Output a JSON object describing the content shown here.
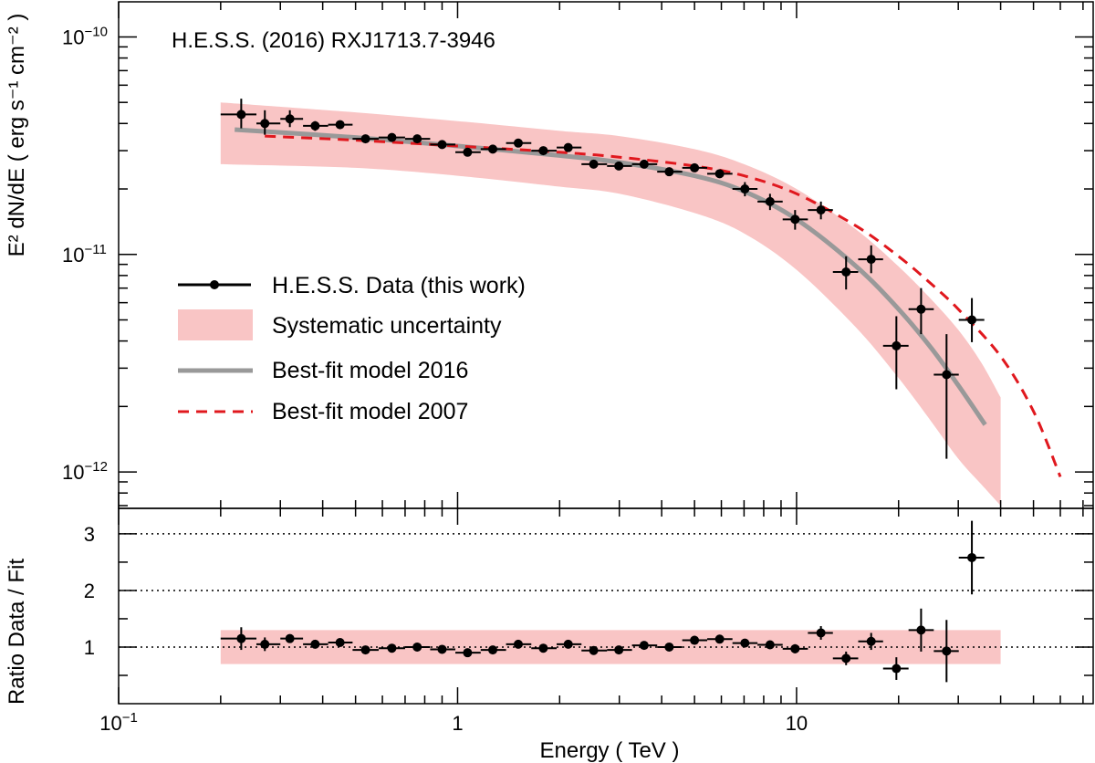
{
  "chart_data": {
    "type": "scatter",
    "title": "H.E.S.S. (2016) RXJ1713.7-3946",
    "xlabel": "Energy ( TeV )",
    "ylabel_upper": "E² dN/dE ( erg s⁻¹ cm⁻² )",
    "ylabel_lower": "Ratio Data / Fit",
    "x_scale": "log",
    "xlim": [
      0.1,
      75
    ],
    "x_tick_labels": [
      {
        "value": 0.1,
        "base": "10",
        "exp": "−1"
      },
      {
        "value": 1,
        "text": "1"
      },
      {
        "value": 10,
        "text": "10"
      }
    ],
    "upper_panel": {
      "y_scale": "log",
      "ylim": [
        6.8e-13,
        1.45e-10
      ],
      "y_tick_labels": [
        {
          "value": 1e-10,
          "base": "10",
          "exp": "−10"
        },
        {
          "value": 1e-11,
          "base": "10",
          "exp": "−11"
        },
        {
          "value": 1e-12,
          "base": "10",
          "exp": "−12"
        }
      ],
      "series": [
        {
          "name": "H.E.S.S. Data (this work)",
          "color": "#000000",
          "points": [
            {
              "x": 0.23,
              "y": 4.4e-11,
              "xlo": 0.2,
              "xhi": 0.255,
              "ylo": 3.8e-11,
              "yhi": 5.2e-11
            },
            {
              "x": 0.27,
              "y": 4e-11,
              "xlo": 0.255,
              "xhi": 0.3,
              "ylo": 3.55e-11,
              "yhi": 4.6e-11
            },
            {
              "x": 0.32,
              "y": 4.2e-11,
              "xlo": 0.3,
              "xhi": 0.35,
              "ylo": 3.85e-11,
              "yhi": 4.6e-11
            },
            {
              "x": 0.38,
              "y": 3.9e-11,
              "xlo": 0.35,
              "xhi": 0.415,
              "ylo": 3.7e-11,
              "yhi": 4.1e-11
            },
            {
              "x": 0.45,
              "y": 3.95e-11,
              "xlo": 0.415,
              "xhi": 0.49,
              "ylo": 3.8e-11,
              "yhi": 4.1e-11
            },
            {
              "x": 0.535,
              "y": 3.4e-11,
              "xlo": 0.49,
              "xhi": 0.585,
              "ylo": 3.3e-11,
              "yhi": 3.5e-11
            },
            {
              "x": 0.64,
              "y": 3.45e-11,
              "xlo": 0.585,
              "xhi": 0.7,
              "ylo": 3.35e-11,
              "yhi": 3.55e-11
            },
            {
              "x": 0.76,
              "y": 3.4e-11,
              "xlo": 0.7,
              "xhi": 0.83,
              "ylo": 3.3e-11,
              "yhi": 3.5e-11
            },
            {
              "x": 0.9,
              "y": 3.2e-11,
              "xlo": 0.83,
              "xhi": 0.985,
              "ylo": 3.1e-11,
              "yhi": 3.3e-11
            },
            {
              "x": 1.07,
              "y": 2.95e-11,
              "xlo": 0.985,
              "xhi": 1.17,
              "ylo": 2.85e-11,
              "yhi": 3.05e-11
            },
            {
              "x": 1.27,
              "y": 3.05e-11,
              "xlo": 1.17,
              "xhi": 1.39,
              "ylo": 2.95e-11,
              "yhi": 3.15e-11
            },
            {
              "x": 1.51,
              "y": 3.25e-11,
              "xlo": 1.39,
              "xhi": 1.65,
              "ylo": 3.15e-11,
              "yhi": 3.35e-11
            },
            {
              "x": 1.79,
              "y": 3e-11,
              "xlo": 1.65,
              "xhi": 1.96,
              "ylo": 2.9e-11,
              "yhi": 3.1e-11
            },
            {
              "x": 2.12,
              "y": 3.1e-11,
              "xlo": 1.96,
              "xhi": 2.32,
              "ylo": 3e-11,
              "yhi": 3.2e-11
            },
            {
              "x": 2.52,
              "y": 2.6e-11,
              "xlo": 2.32,
              "xhi": 2.76,
              "ylo": 2.5e-11,
              "yhi": 2.7e-11
            },
            {
              "x": 2.99,
              "y": 2.55e-11,
              "xlo": 2.76,
              "xhi": 3.27,
              "ylo": 2.45e-11,
              "yhi": 2.65e-11
            },
            {
              "x": 3.55,
              "y": 2.6e-11,
              "xlo": 3.27,
              "xhi": 3.88,
              "ylo": 2.5e-11,
              "yhi": 2.7e-11
            },
            {
              "x": 4.21,
              "y": 2.4e-11,
              "xlo": 3.88,
              "xhi": 4.6,
              "ylo": 2.3e-11,
              "yhi": 2.5e-11
            },
            {
              "x": 5.0,
              "y": 2.5e-11,
              "xlo": 4.6,
              "xhi": 5.45,
              "ylo": 2.4e-11,
              "yhi": 2.6e-11
            },
            {
              "x": 5.93,
              "y": 2.35e-11,
              "xlo": 5.45,
              "xhi": 6.47,
              "ylo": 2.25e-11,
              "yhi": 2.45e-11
            },
            {
              "x": 7.04,
              "y": 2e-11,
              "xlo": 6.47,
              "xhi": 7.67,
              "ylo": 1.85e-11,
              "yhi": 2.15e-11
            },
            {
              "x": 8.35,
              "y": 1.75e-11,
              "xlo": 7.67,
              "xhi": 9.1,
              "ylo": 1.6e-11,
              "yhi": 1.9e-11
            },
            {
              "x": 9.9,
              "y": 1.45e-11,
              "xlo": 9.1,
              "xhi": 10.8,
              "ylo": 1.3e-11,
              "yhi": 1.6e-11
            },
            {
              "x": 11.8,
              "y": 1.6e-11,
              "xlo": 10.8,
              "xhi": 12.8,
              "ylo": 1.45e-11,
              "yhi": 1.75e-11
            },
            {
              "x": 14.0,
              "y": 8.3e-12,
              "xlo": 12.8,
              "xhi": 15.2,
              "ylo": 6.9e-12,
              "yhi": 9.8e-12
            },
            {
              "x": 16.6,
              "y": 9.5e-12,
              "xlo": 15.2,
              "xhi": 18.0,
              "ylo": 8.2e-12,
              "yhi": 1.1e-11
            },
            {
              "x": 19.7,
              "y": 3.8e-12,
              "xlo": 18.0,
              "xhi": 21.4,
              "ylo": 2.4e-12,
              "yhi": 5.2e-12
            },
            {
              "x": 23.3,
              "y": 5.6e-12,
              "xlo": 21.4,
              "xhi": 25.4,
              "ylo": 4.3e-12,
              "yhi": 7e-12
            },
            {
              "x": 27.7,
              "y": 2.8e-12,
              "xlo": 25.4,
              "xhi": 30.1,
              "ylo": 1.15e-12,
              "yhi": 4.3e-12
            },
            {
              "x": 32.9,
              "y": 5e-12,
              "xlo": 30.1,
              "xhi": 35.8,
              "ylo": 3.95e-12,
              "yhi": 6.3e-12
            }
          ]
        },
        {
          "name": "Systematic uncertainty",
          "color": "#f9c5c5",
          "band": [
            {
              "x": 0.2,
              "lo": 2.6e-11,
              "hi": 5e-11
            },
            {
              "x": 0.5,
              "lo": 2.5e-11,
              "hi": 4.5e-11
            },
            {
              "x": 1.0,
              "lo": 2.3e-11,
              "hi": 4.1e-11
            },
            {
              "x": 2.0,
              "lo": 2.05e-11,
              "hi": 3.7e-11
            },
            {
              "x": 3.0,
              "lo": 1.9e-11,
              "hi": 3.5e-11
            },
            {
              "x": 5.0,
              "lo": 1.55e-11,
              "hi": 3.05e-11
            },
            {
              "x": 7.0,
              "lo": 1.25e-11,
              "hi": 2.6e-11
            },
            {
              "x": 10.0,
              "lo": 8.5e-12,
              "hi": 2e-11
            },
            {
              "x": 15.0,
              "lo": 4.6e-12,
              "hi": 1.3e-11
            },
            {
              "x": 20.0,
              "lo": 2.7e-12,
              "hi": 8.8e-12
            },
            {
              "x": 25.0,
              "lo": 1.7e-12,
              "hi": 6.2e-12
            },
            {
              "x": 30.0,
              "lo": 1.15e-12,
              "hi": 4.5e-12
            },
            {
              "x": 35.0,
              "lo": 8.8e-13,
              "hi": 3.2e-12
            },
            {
              "x": 40.0,
              "lo": 7e-13,
              "hi": 2.2e-12
            }
          ]
        },
        {
          "name": "Best-fit model 2016",
          "color": "#999999",
          "style": "solid",
          "points": [
            {
              "x": 0.22,
              "y": 3.75e-11
            },
            {
              "x": 0.5,
              "y": 3.45e-11
            },
            {
              "x": 1.0,
              "y": 3.15e-11
            },
            {
              "x": 2.0,
              "y": 2.85e-11
            },
            {
              "x": 3.0,
              "y": 2.65e-11
            },
            {
              "x": 5.0,
              "y": 2.3e-11
            },
            {
              "x": 7.0,
              "y": 1.95e-11
            },
            {
              "x": 10.0,
              "y": 1.45e-11
            },
            {
              "x": 15.0,
              "y": 8.8e-12
            },
            {
              "x": 20.0,
              "y": 5.6e-12
            },
            {
              "x": 25.0,
              "y": 3.7e-12
            },
            {
              "x": 30.0,
              "y": 2.5e-12
            },
            {
              "x": 36.0,
              "y": 1.65e-12
            }
          ]
        },
        {
          "name": "Best-fit model 2007",
          "color": "#e0181e",
          "style": "dashed",
          "points": [
            {
              "x": 0.27,
              "y": 3.5e-11
            },
            {
              "x": 0.5,
              "y": 3.35e-11
            },
            {
              "x": 1.0,
              "y": 3.15e-11
            },
            {
              "x": 2.0,
              "y": 2.95e-11
            },
            {
              "x": 3.0,
              "y": 2.8e-11
            },
            {
              "x": 5.0,
              "y": 2.55e-11
            },
            {
              "x": 7.0,
              "y": 2.3e-11
            },
            {
              "x": 10.0,
              "y": 1.9e-11
            },
            {
              "x": 15.0,
              "y": 1.35e-11
            },
            {
              "x": 20.0,
              "y": 9.8e-12
            },
            {
              "x": 25.0,
              "y": 7.3e-12
            },
            {
              "x": 30.0,
              "y": 5.6e-12
            },
            {
              "x": 40.0,
              "y": 3.4e-12
            },
            {
              "x": 50.0,
              "y": 1.9e-12
            },
            {
              "x": 60.0,
              "y": 9.5e-13
            }
          ]
        }
      ]
    },
    "lower_panel": {
      "y_scale": "linear",
      "ylim": [
        0.0,
        3.45
      ],
      "y_ticks": [
        1,
        2,
        3
      ],
      "reference_lines": [
        1,
        2,
        3
      ],
      "systematic_band": {
        "xmin": 0.2,
        "xmax": 40.0,
        "lo": 0.7,
        "hi": 1.3
      },
      "points": [
        {
          "x": 0.23,
          "y": 1.15,
          "xlo": 0.2,
          "xhi": 0.255,
          "err": 0.2
        },
        {
          "x": 0.27,
          "y": 1.05,
          "xlo": 0.255,
          "xhi": 0.3,
          "err": 0.12
        },
        {
          "x": 0.32,
          "y": 1.15,
          "xlo": 0.3,
          "xhi": 0.35,
          "err": 0.07
        },
        {
          "x": 0.38,
          "y": 1.05,
          "xlo": 0.35,
          "xhi": 0.415,
          "err": 0.05
        },
        {
          "x": 0.45,
          "y": 1.08,
          "xlo": 0.415,
          "xhi": 0.49,
          "err": 0.05
        },
        {
          "x": 0.535,
          "y": 0.95,
          "xlo": 0.49,
          "xhi": 0.585,
          "err": 0.04
        },
        {
          "x": 0.64,
          "y": 0.98,
          "xlo": 0.585,
          "xhi": 0.7,
          "err": 0.04
        },
        {
          "x": 0.76,
          "y": 1.0,
          "xlo": 0.7,
          "xhi": 0.83,
          "err": 0.04
        },
        {
          "x": 0.9,
          "y": 0.96,
          "xlo": 0.83,
          "xhi": 0.985,
          "err": 0.04
        },
        {
          "x": 1.07,
          "y": 0.9,
          "xlo": 0.985,
          "xhi": 1.17,
          "err": 0.04
        },
        {
          "x": 1.27,
          "y": 0.95,
          "xlo": 1.17,
          "xhi": 1.39,
          "err": 0.04
        },
        {
          "x": 1.51,
          "y": 1.05,
          "xlo": 1.39,
          "xhi": 1.65,
          "err": 0.04
        },
        {
          "x": 1.79,
          "y": 0.98,
          "xlo": 1.65,
          "xhi": 1.96,
          "err": 0.04
        },
        {
          "x": 2.12,
          "y": 1.05,
          "xlo": 1.96,
          "xhi": 2.32,
          "err": 0.04
        },
        {
          "x": 2.52,
          "y": 0.94,
          "xlo": 2.32,
          "xhi": 2.76,
          "err": 0.04
        },
        {
          "x": 2.99,
          "y": 0.95,
          "xlo": 2.76,
          "xhi": 3.27,
          "err": 0.04
        },
        {
          "x": 3.55,
          "y": 1.03,
          "xlo": 3.27,
          "xhi": 3.88,
          "err": 0.04
        },
        {
          "x": 4.21,
          "y": 1.0,
          "xlo": 3.88,
          "xhi": 4.6,
          "err": 0.04
        },
        {
          "x": 5.0,
          "y": 1.12,
          "xlo": 4.6,
          "xhi": 5.45,
          "err": 0.04
        },
        {
          "x": 5.93,
          "y": 1.14,
          "xlo": 5.45,
          "xhi": 6.47,
          "err": 0.05
        },
        {
          "x": 7.04,
          "y": 1.07,
          "xlo": 6.47,
          "xhi": 7.67,
          "err": 0.06
        },
        {
          "x": 8.35,
          "y": 1.04,
          "xlo": 7.67,
          "xhi": 9.1,
          "err": 0.07
        },
        {
          "x": 9.9,
          "y": 0.97,
          "xlo": 9.1,
          "xhi": 10.8,
          "err": 0.08
        },
        {
          "x": 11.8,
          "y": 1.25,
          "xlo": 10.8,
          "xhi": 12.8,
          "err": 0.12
        },
        {
          "x": 14.0,
          "y": 0.8,
          "xlo": 12.8,
          "xhi": 15.2,
          "err": 0.12
        },
        {
          "x": 16.6,
          "y": 1.1,
          "xlo": 15.2,
          "xhi": 18.0,
          "err": 0.15
        },
        {
          "x": 19.7,
          "y": 0.62,
          "xlo": 18.0,
          "xhi": 21.4,
          "err": 0.2
        },
        {
          "x": 23.3,
          "y": 1.3,
          "xlo": 21.4,
          "xhi": 25.4,
          "err": 0.38
        },
        {
          "x": 27.7,
          "y": 0.93,
          "xlo": 25.4,
          "xhi": 30.1,
          "err": 0.55
        },
        {
          "x": 32.9,
          "y": 2.58,
          "xlo": 30.1,
          "xhi": 35.8,
          "err": 0.65
        }
      ]
    },
    "legend": {
      "placement": "center-left",
      "entries": [
        "H.E.S.S. Data (this work)",
        "Systematic uncertainty",
        "Best-fit model 2016",
        "Best-fit model 2007"
      ]
    }
  }
}
